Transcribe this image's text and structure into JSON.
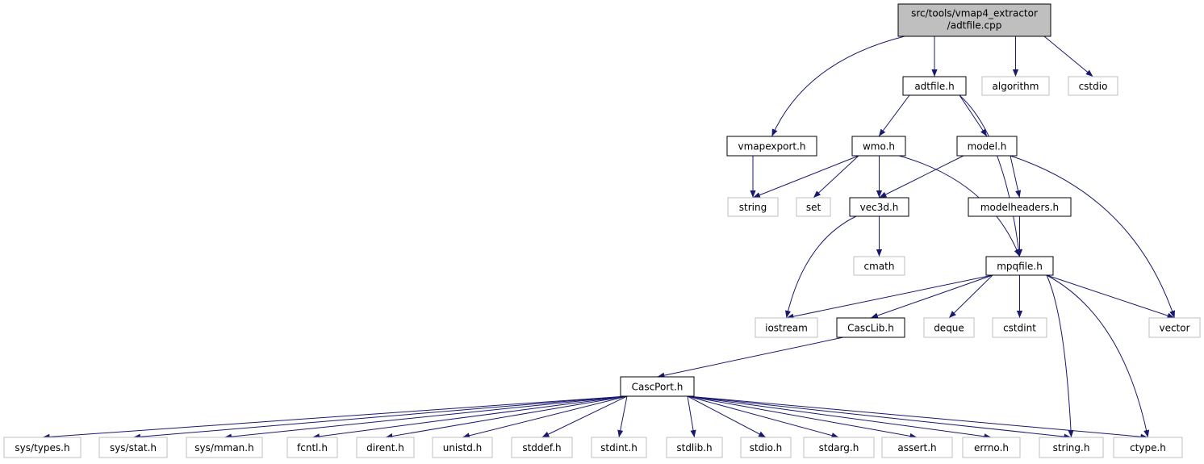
{
  "nodes": [
    {
      "lines": [
        "src/tools/vmap4_extractor",
        "/adtfile.cpp"
      ]
    },
    {
      "label": "adtfile.h"
    },
    {
      "label": "algorithm"
    },
    {
      "label": "cstdio"
    },
    {
      "label": "vmapexport.h"
    },
    {
      "label": "wmo.h"
    },
    {
      "label": "model.h"
    },
    {
      "label": "string"
    },
    {
      "label": "set"
    },
    {
      "label": "vec3d.h"
    },
    {
      "label": "modelheaders.h"
    },
    {
      "label": "cmath"
    },
    {
      "label": "mpqfile.h"
    },
    {
      "label": "iostream"
    },
    {
      "label": "CascLib.h"
    },
    {
      "label": "deque"
    },
    {
      "label": "cstdint"
    },
    {
      "label": "vector"
    },
    {
      "label": "CascPort.h"
    },
    {
      "label": "sys/types.h"
    },
    {
      "label": "sys/stat.h"
    },
    {
      "label": "sys/mman.h"
    },
    {
      "label": "fcntl.h"
    },
    {
      "label": "dirent.h"
    },
    {
      "label": "unistd.h"
    },
    {
      "label": "stddef.h"
    },
    {
      "label": "stdint.h"
    },
    {
      "label": "stdlib.h"
    },
    {
      "label": "stdio.h"
    },
    {
      "label": "stdarg.h"
    },
    {
      "label": "assert.h"
    },
    {
      "label": "errno.h"
    },
    {
      "label": "string.h"
    },
    {
      "label": "ctype.h"
    }
  ]
}
